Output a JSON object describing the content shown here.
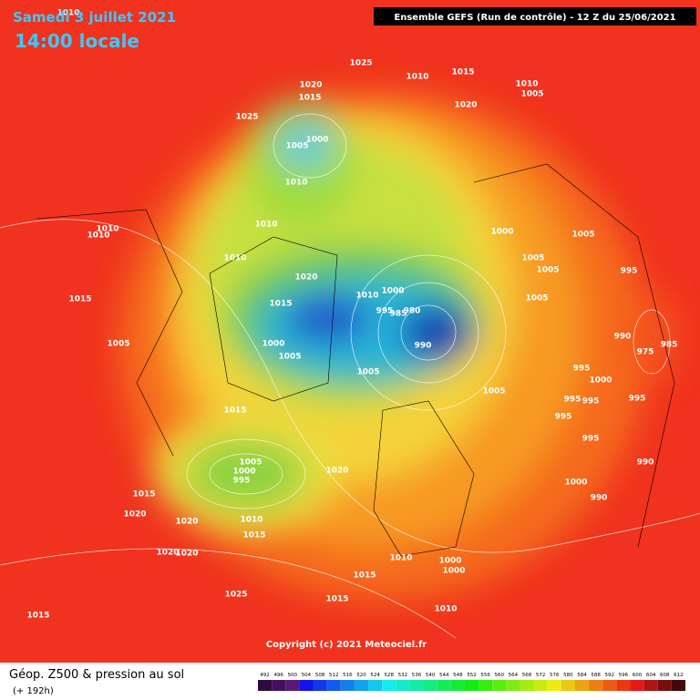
{
  "title": {
    "date": "Samedi 3 juillet 2021",
    "time": "14:00 locale"
  },
  "header": "Ensemble GEFS  (Run de contrôle)  -  12 Z du 25/06/2021",
  "footer": {
    "title": "Géop. Z500 & pression au sol",
    "subtitle": "(+ 192h)"
  },
  "copyright": "Copyright (c) 2021 Meteociel.fr",
  "colorbar": [
    492,
    496,
    500,
    504,
    508,
    512,
    516,
    520,
    524,
    528,
    532,
    536,
    540,
    544,
    548,
    552,
    556,
    560,
    564,
    568,
    572,
    576,
    580,
    584,
    588,
    592,
    596,
    600,
    604,
    608,
    612
  ],
  "pressure_labels": [
    1010,
    1025,
    1010,
    1015,
    1010,
    1005,
    1020,
    1015,
    1025,
    1000,
    1005,
    1010,
    1020,
    1010,
    1010,
    1010,
    1000,
    1005,
    1010,
    1005,
    1005,
    995,
    1020,
    1010,
    1000,
    1015,
    1015,
    1005,
    995,
    985,
    980,
    1005,
    1000,
    990,
    990,
    975,
    985,
    1005,
    1005,
    995,
    1000,
    1005,
    995,
    995,
    995,
    1015,
    995,
    995,
    990,
    1005,
    1000,
    995,
    1020,
    1000,
    1015,
    990,
    1020,
    1020,
    1010,
    1015,
    1020,
    1020,
    1010,
    1000,
    1000,
    1015,
    1025,
    1015,
    1010,
    1015
  ]
}
